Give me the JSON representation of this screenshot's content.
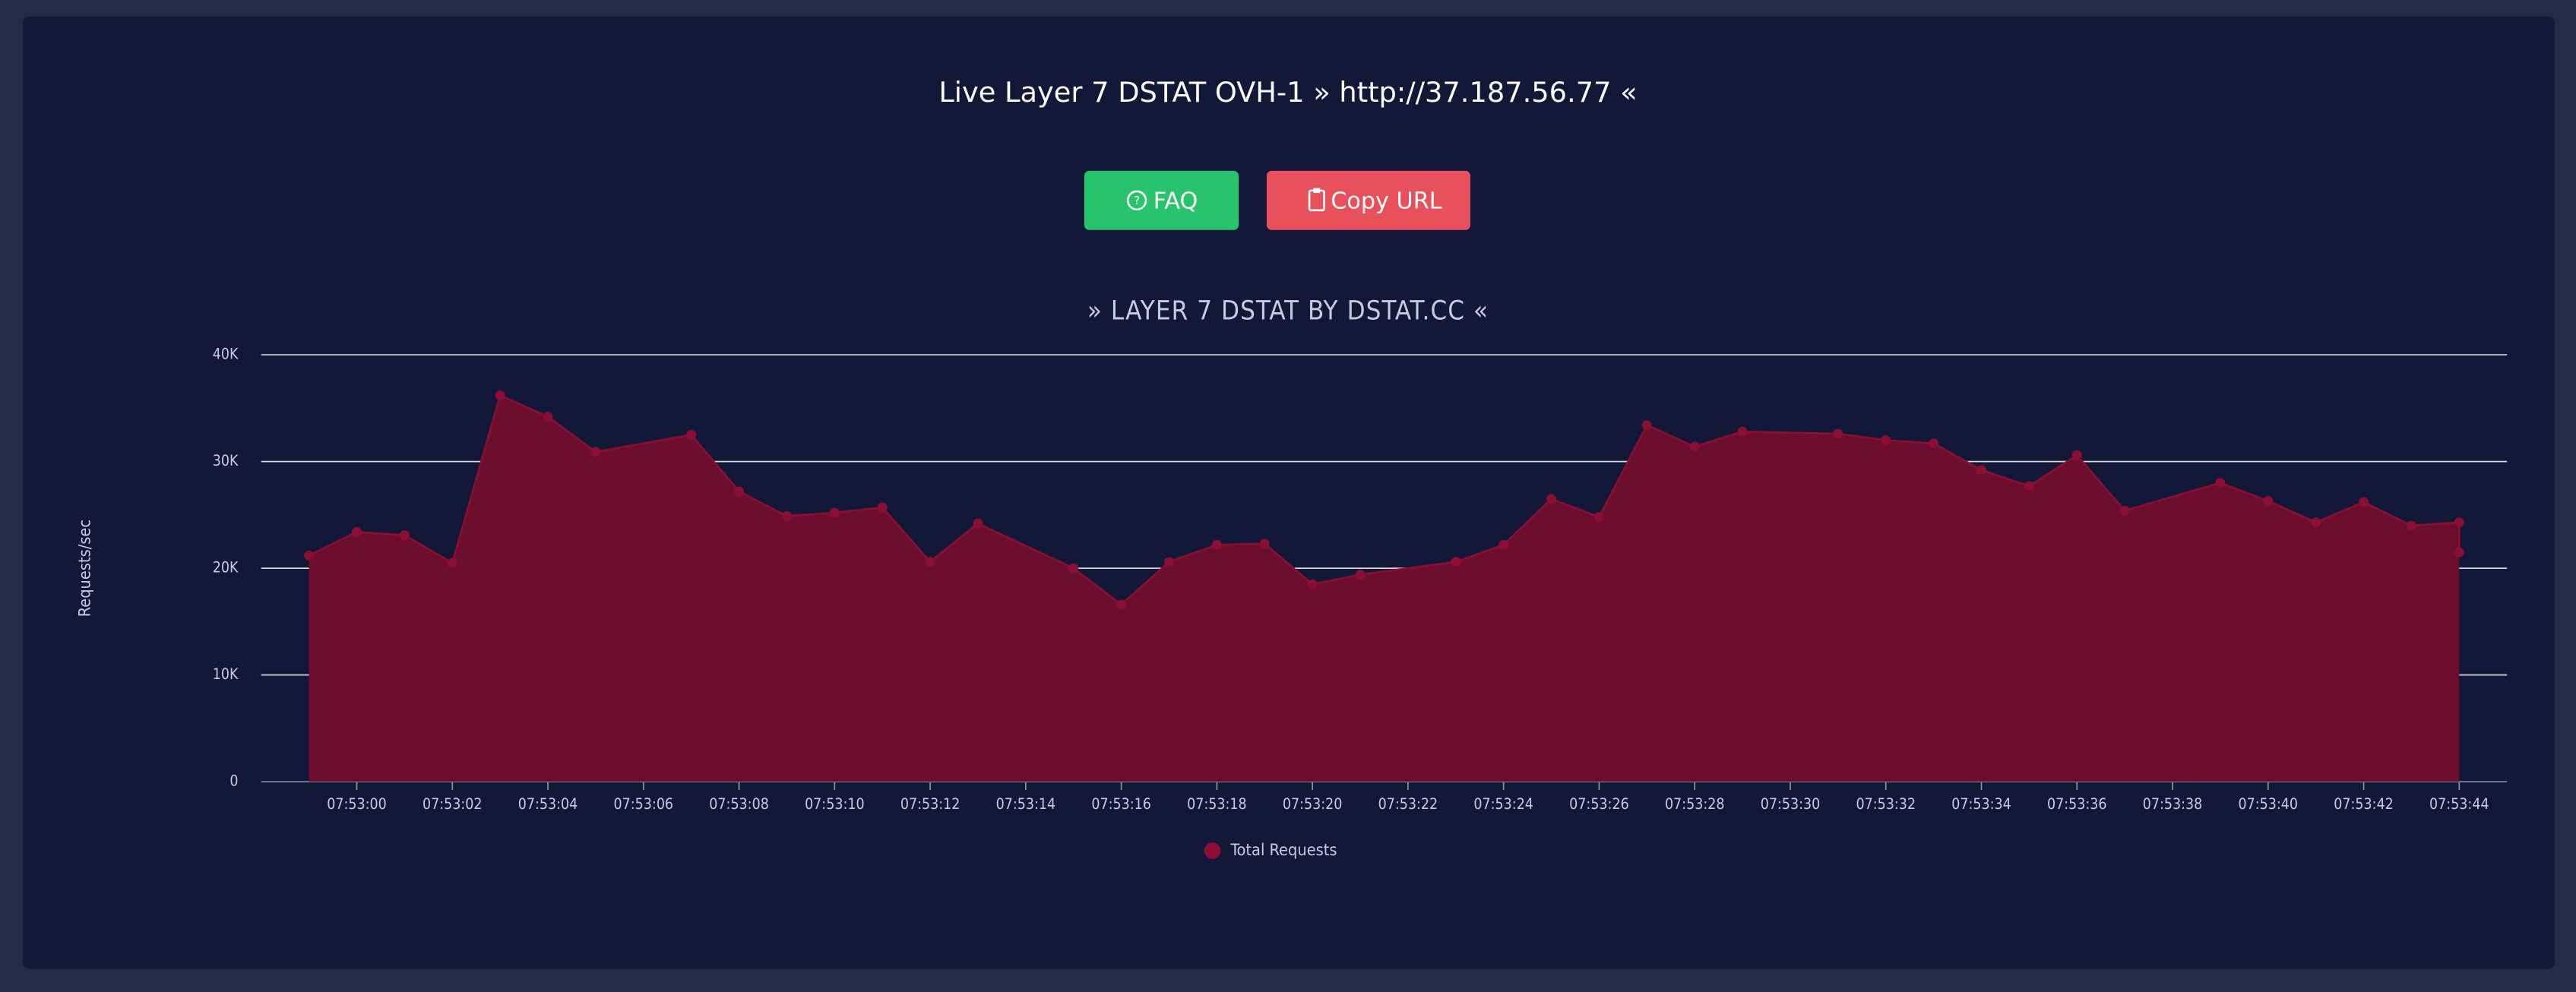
{
  "header": {
    "title": "Live Layer 7 DSTAT OVH-1 » http://37.187.56.77 «"
  },
  "buttons": [
    {
      "label": "FAQ"
    },
    {
      "label": "Copy URL"
    }
  ],
  "chart_data": {
    "type": "area",
    "title": "» LAYER 7 DSTAT BY DSTAT.CC «",
    "y_label": "Requests/sec",
    "x": [
      "07:52:59",
      "07:53:00",
      "07:53:01",
      "07:53:02",
      "07:53:03",
      "07:53:04",
      "07:53:05",
      "07:53:07",
      "07:53:08",
      "07:53:09",
      "07:53:10",
      "07:53:11",
      "07:53:12",
      "07:53:13",
      "07:53:15",
      "07:53:16",
      "07:53:17",
      "07:53:18",
      "07:53:19",
      "07:53:20",
      "07:53:21",
      "07:53:23",
      "07:53:24",
      "07:53:25",
      "07:53:26",
      "07:53:27",
      "07:53:28",
      "07:53:29",
      "07:53:31",
      "07:53:32",
      "07:53:33",
      "07:53:34",
      "07:53:35",
      "07:53:36",
      "07:53:37",
      "07:53:39",
      "07:53:40",
      "07:53:41",
      "07:53:42",
      "07:53:43",
      "07:53:44",
      "07:53:44"
    ],
    "series": [
      {
        "name": "Total Requests",
        "color": "#8b0f35",
        "fill": "#6e0e2e",
        "values": [
          21200,
          23400,
          23100,
          20500,
          36200,
          34200,
          30900,
          32500,
          27200,
          24900,
          25200,
          25700,
          20600,
          24200,
          20000,
          16600,
          20600,
          22200,
          22300,
          18500,
          19400,
          20600,
          22200,
          26500,
          24800,
          33400,
          31400,
          32800,
          32600,
          32000,
          31700,
          29200,
          27700,
          30600,
          25400,
          28000,
          26300,
          24300,
          26200,
          24000,
          24300,
          21500
        ]
      }
    ],
    "xlim": [
      "07:52:58",
      "07:53:45"
    ],
    "xticks": [
      "07:53:00",
      "07:53:02",
      "07:53:04",
      "07:53:06",
      "07:53:08",
      "07:53:10",
      "07:53:12",
      "07:53:14",
      "07:53:16",
      "07:53:18",
      "07:53:20",
      "07:53:22",
      "07:53:24",
      "07:53:26",
      "07:53:28",
      "07:53:30",
      "07:53:32",
      "07:53:34",
      "07:53:36",
      "07:53:38",
      "07:53:40",
      "07:53:42",
      "07:53:44"
    ],
    "ylim": [
      0,
      40000
    ],
    "yticks": [
      0,
      {
        "value": 10000,
        "label": "10K"
      },
      {
        "value": 20000,
        "label": "20K"
      },
      {
        "value": 30000,
        "label": "30K"
      },
      {
        "value": 40000,
        "label": "40K"
      }
    ],
    "grid": true,
    "legend": "bottom"
  }
}
